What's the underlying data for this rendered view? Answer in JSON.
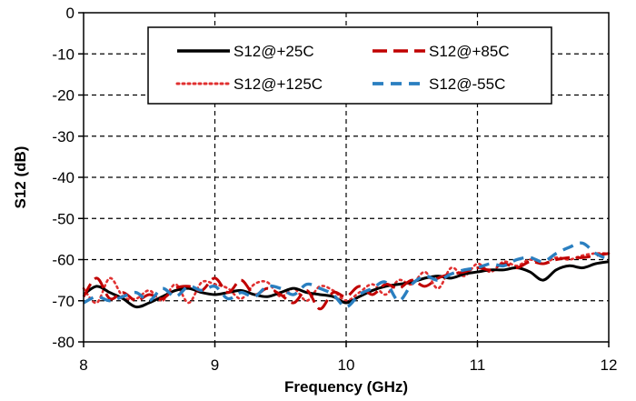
{
  "chart_data": {
    "type": "line",
    "xlabel": "Frequency (GHz)",
    "ylabel": "S12 (dB)",
    "xlim": [
      8,
      12
    ],
    "ylim": [
      -80,
      0
    ],
    "xticks": [
      8,
      9,
      10,
      11,
      12
    ],
    "yticks": [
      0,
      -10,
      -20,
      -30,
      -40,
      -50,
      -60,
      -70,
      -80
    ],
    "grid": true,
    "legend_position": "top-center",
    "series": [
      {
        "name": "S12@+25C",
        "color": "#000000",
        "dash": "solid",
        "x": [
          8.0,
          8.1,
          8.2,
          8.3,
          8.4,
          8.5,
          8.6,
          8.7,
          8.8,
          8.9,
          9.0,
          9.1,
          9.2,
          9.3,
          9.4,
          9.5,
          9.6,
          9.7,
          9.8,
          9.9,
          10.0,
          10.1,
          10.2,
          10.3,
          10.4,
          10.5,
          10.6,
          10.7,
          10.8,
          10.9,
          11.0,
          11.1,
          11.2,
          11.3,
          11.4,
          11.5,
          11.6,
          11.7,
          11.8,
          11.9,
          12.0
        ],
        "y": [
          -68.5,
          -66.5,
          -68.0,
          -69.5,
          -71.5,
          -70.5,
          -69.0,
          -67.5,
          -67.0,
          -68.0,
          -68.5,
          -68.0,
          -67.5,
          -68.5,
          -69.0,
          -68.0,
          -67.0,
          -68.0,
          -68.5,
          -69.0,
          -70.5,
          -69.0,
          -67.5,
          -66.5,
          -66.0,
          -65.5,
          -64.5,
          -64.0,
          -64.5,
          -63.5,
          -63.0,
          -62.5,
          -62.5,
          -62.0,
          -63.0,
          -65.0,
          -62.5,
          -61.5,
          -62.0,
          -61.0,
          -60.5
        ]
      },
      {
        "name": "S12@+85C",
        "color": "#c00000",
        "dash": "long-dash",
        "x": [
          8.0,
          8.1,
          8.2,
          8.3,
          8.4,
          8.5,
          8.6,
          8.7,
          8.8,
          8.9,
          9.0,
          9.1,
          9.2,
          9.3,
          9.4,
          9.5,
          9.6,
          9.7,
          9.8,
          9.9,
          10.0,
          10.1,
          10.2,
          10.3,
          10.4,
          10.5,
          10.6,
          10.7,
          10.8,
          10.9,
          11.0,
          11.1,
          11.2,
          11.3,
          11.4,
          11.5,
          11.6,
          11.7,
          11.8,
          11.9,
          12.0
        ],
        "y": [
          -69.0,
          -64.5,
          -69.5,
          -68.0,
          -70.0,
          -68.5,
          -69.5,
          -67.0,
          -66.5,
          -67.5,
          -64.5,
          -68.0,
          -65.0,
          -68.5,
          -67.0,
          -68.5,
          -70.5,
          -67.5,
          -72.0,
          -68.0,
          -69.0,
          -66.5,
          -68.5,
          -66.0,
          -67.0,
          -65.0,
          -66.5,
          -64.5,
          -63.5,
          -63.0,
          -62.0,
          -62.5,
          -61.0,
          -62.0,
          -60.5,
          -61.0,
          -60.0,
          -59.5,
          -59.5,
          -59.0,
          -58.5
        ]
      },
      {
        "name": "S12@+125C",
        "color": "#e03030",
        "dash": "dotted",
        "x": [
          8.0,
          8.1,
          8.2,
          8.3,
          8.4,
          8.5,
          8.6,
          8.7,
          8.8,
          8.9,
          9.0,
          9.1,
          9.2,
          9.3,
          9.4,
          9.5,
          9.6,
          9.7,
          9.8,
          9.9,
          10.0,
          10.1,
          10.2,
          10.3,
          10.4,
          10.5,
          10.6,
          10.7,
          10.8,
          10.9,
          11.0,
          11.1,
          11.2,
          11.3,
          11.4,
          11.5,
          11.6,
          11.7,
          11.8,
          11.9,
          12.0
        ],
        "y": [
          -67.0,
          -70.5,
          -64.5,
          -69.0,
          -69.5,
          -67.5,
          -70.0,
          -66.0,
          -70.5,
          -65.5,
          -66.0,
          -67.0,
          -69.5,
          -66.0,
          -65.5,
          -69.0,
          -67.0,
          -70.0,
          -66.5,
          -67.5,
          -70.0,
          -68.0,
          -66.0,
          -68.5,
          -65.0,
          -66.0,
          -63.0,
          -67.0,
          -62.0,
          -64.0,
          -61.0,
          -63.0,
          -60.5,
          -61.5,
          -60.0,
          -61.0,
          -59.5,
          -60.0,
          -59.0,
          -58.5,
          -58.5
        ]
      },
      {
        "name": "S12@-55C",
        "color": "#2a7fc0",
        "dash": "dashed",
        "x": [
          8.0,
          8.1,
          8.2,
          8.3,
          8.4,
          8.5,
          8.6,
          8.7,
          8.8,
          8.9,
          9.0,
          9.1,
          9.2,
          9.3,
          9.4,
          9.5,
          9.6,
          9.7,
          9.8,
          9.9,
          10.0,
          10.1,
          10.2,
          10.3,
          10.4,
          10.5,
          10.6,
          10.7,
          10.8,
          10.9,
          11.0,
          11.1,
          11.2,
          11.3,
          11.4,
          11.5,
          11.6,
          11.7,
          11.8,
          11.9,
          12.0
        ],
        "y": [
          -70.5,
          -69.0,
          -70.0,
          -69.0,
          -68.0,
          -70.0,
          -67.0,
          -69.0,
          -66.5,
          -67.5,
          -66.5,
          -69.5,
          -68.0,
          -69.0,
          -66.5,
          -67.0,
          -68.5,
          -66.0,
          -67.0,
          -68.5,
          -71.5,
          -68.5,
          -67.0,
          -65.5,
          -70.0,
          -66.0,
          -64.0,
          -65.0,
          -63.5,
          -62.5,
          -62.0,
          -61.0,
          -61.5,
          -60.0,
          -59.5,
          -60.5,
          -58.5,
          -57.0,
          -56.0,
          -58.5,
          -60.0
        ]
      }
    ]
  }
}
